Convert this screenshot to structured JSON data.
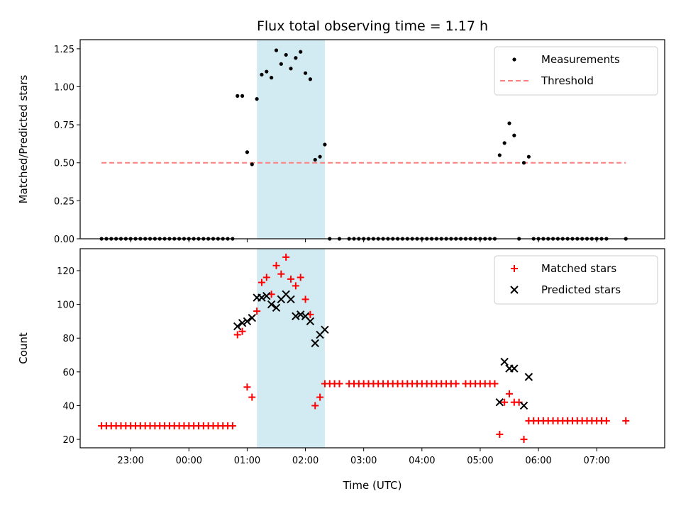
{
  "title": "Flux total observing time = 1.17 h",
  "colors": {
    "measurement": "#000000",
    "threshold": "#ff7f7f",
    "matched": "#ff0000",
    "predicted": "#000000",
    "shade": "#add8e6"
  },
  "chart_data": [
    {
      "type": "scatter",
      "ylabel": "Matched/Predicted stars",
      "xlabel": "",
      "xlim": [
        "22:08",
        "08:10"
      ],
      "ylim": [
        0,
        1.31
      ],
      "yticks": [
        "0.00",
        "0.25",
        "0.50",
        "0.75",
        "1.00",
        "1.25"
      ],
      "shaded_interval": [
        "01:10",
        "02:20"
      ],
      "legend": {
        "position": "top-right",
        "entries": [
          "Measurements",
          "Threshold"
        ]
      },
      "threshold": {
        "name": "Threshold",
        "value": 0.5,
        "x": [
          "22:30",
          "07:30"
        ]
      },
      "series": [
        {
          "name": "Measurements",
          "points": [
            [
              "22:30",
              0
            ],
            [
              "22:35",
              0
            ],
            [
              "22:40",
              0
            ],
            [
              "22:45",
              0
            ],
            [
              "22:50",
              0
            ],
            [
              "22:55",
              0
            ],
            [
              "23:00",
              0
            ],
            [
              "23:05",
              0
            ],
            [
              "23:10",
              0
            ],
            [
              "23:15",
              0
            ],
            [
              "23:20",
              0
            ],
            [
              "23:25",
              0
            ],
            [
              "23:30",
              0
            ],
            [
              "23:35",
              0
            ],
            [
              "23:40",
              0
            ],
            [
              "23:45",
              0
            ],
            [
              "23:50",
              0
            ],
            [
              "23:55",
              0
            ],
            [
              "00:00",
              0
            ],
            [
              "00:05",
              0
            ],
            [
              "00:10",
              0
            ],
            [
              "00:15",
              0
            ],
            [
              "00:20",
              0
            ],
            [
              "00:25",
              0
            ],
            [
              "00:30",
              0
            ],
            [
              "00:35",
              0
            ],
            [
              "00:40",
              0
            ],
            [
              "00:45",
              0
            ],
            [
              "00:50",
              0.94
            ],
            [
              "00:55",
              0.94
            ],
            [
              "01:00",
              0.57
            ],
            [
              "01:05",
              0.49
            ],
            [
              "01:10",
              0.92
            ],
            [
              "01:15",
              1.08
            ],
            [
              "01:20",
              1.1
            ],
            [
              "01:25",
              1.06
            ],
            [
              "01:30",
              1.24
            ],
            [
              "01:35",
              1.15
            ],
            [
              "01:40",
              1.21
            ],
            [
              "01:45",
              1.12
            ],
            [
              "01:50",
              1.19
            ],
            [
              "01:55",
              1.23
            ],
            [
              "02:00",
              1.09
            ],
            [
              "02:05",
              1.05
            ],
            [
              "02:10",
              0.52
            ],
            [
              "02:15",
              0.54
            ],
            [
              "02:20",
              0.62
            ],
            [
              "02:25",
              0
            ],
            [
              "02:35",
              0
            ],
            [
              "02:45",
              0
            ],
            [
              "02:50",
              0
            ],
            [
              "02:55",
              0
            ],
            [
              "03:00",
              0
            ],
            [
              "03:05",
              0
            ],
            [
              "03:10",
              0
            ],
            [
              "03:15",
              0
            ],
            [
              "03:20",
              0
            ],
            [
              "03:25",
              0
            ],
            [
              "03:30",
              0
            ],
            [
              "03:35",
              0
            ],
            [
              "03:40",
              0
            ],
            [
              "03:45",
              0
            ],
            [
              "03:50",
              0
            ],
            [
              "03:55",
              0
            ],
            [
              "04:00",
              0
            ],
            [
              "04:05",
              0
            ],
            [
              "04:10",
              0
            ],
            [
              "04:15",
              0
            ],
            [
              "04:20",
              0
            ],
            [
              "04:25",
              0
            ],
            [
              "04:30",
              0
            ],
            [
              "04:35",
              0
            ],
            [
              "04:40",
              0
            ],
            [
              "04:45",
              0
            ],
            [
              "04:50",
              0
            ],
            [
              "04:55",
              0
            ],
            [
              "05:00",
              0
            ],
            [
              "05:05",
              0
            ],
            [
              "05:10",
              0
            ],
            [
              "05:15",
              0
            ],
            [
              "05:20",
              0.55
            ],
            [
              "05:25",
              0.63
            ],
            [
              "05:30",
              0.76
            ],
            [
              "05:35",
              0.68
            ],
            [
              "05:45",
              0.5
            ],
            [
              "05:50",
              0.54
            ],
            [
              "05:40",
              0
            ],
            [
              "05:55",
              0
            ],
            [
              "06:00",
              0
            ],
            [
              "06:05",
              0
            ],
            [
              "06:10",
              0
            ],
            [
              "06:15",
              0
            ],
            [
              "06:20",
              0
            ],
            [
              "06:25",
              0
            ],
            [
              "06:30",
              0
            ],
            [
              "06:35",
              0
            ],
            [
              "06:40",
              0
            ],
            [
              "06:45",
              0
            ],
            [
              "06:50",
              0
            ],
            [
              "06:55",
              0
            ],
            [
              "07:00",
              0
            ],
            [
              "07:05",
              0
            ],
            [
              "07:10",
              0
            ],
            [
              "07:30",
              0
            ]
          ]
        }
      ]
    },
    {
      "type": "scatter",
      "ylabel": "Count",
      "xlabel": "Time (UTC)",
      "xlim": [
        "22:08",
        "08:10"
      ],
      "ylim": [
        15,
        133
      ],
      "yticks": [
        "20",
        "40",
        "60",
        "80",
        "100",
        "120"
      ],
      "xticks": [
        "23:00",
        "00:00",
        "01:00",
        "02:00",
        "03:00",
        "04:00",
        "05:00",
        "06:00",
        "07:00"
      ],
      "shaded_interval": [
        "01:10",
        "02:20"
      ],
      "legend": {
        "position": "top-right",
        "entries": [
          "Matched stars",
          "Predicted stars"
        ]
      },
      "series": [
        {
          "name": "Matched stars",
          "points": [
            [
              "22:30",
              28
            ],
            [
              "22:35",
              28
            ],
            [
              "22:40",
              28
            ],
            [
              "22:45",
              28
            ],
            [
              "22:50",
              28
            ],
            [
              "22:55",
              28
            ],
            [
              "23:00",
              28
            ],
            [
              "23:05",
              28
            ],
            [
              "23:10",
              28
            ],
            [
              "23:15",
              28
            ],
            [
              "23:20",
              28
            ],
            [
              "23:25",
              28
            ],
            [
              "23:30",
              28
            ],
            [
              "23:35",
              28
            ],
            [
              "23:40",
              28
            ],
            [
              "23:45",
              28
            ],
            [
              "23:50",
              28
            ],
            [
              "23:55",
              28
            ],
            [
              "00:00",
              28
            ],
            [
              "00:05",
              28
            ],
            [
              "00:10",
              28
            ],
            [
              "00:15",
              28
            ],
            [
              "00:20",
              28
            ],
            [
              "00:25",
              28
            ],
            [
              "00:30",
              28
            ],
            [
              "00:35",
              28
            ],
            [
              "00:40",
              28
            ],
            [
              "00:45",
              28
            ],
            [
              "00:50",
              82
            ],
            [
              "00:55",
              84
            ],
            [
              "01:00",
              51
            ],
            [
              "01:05",
              45
            ],
            [
              "01:10",
              96
            ],
            [
              "01:15",
              113
            ],
            [
              "01:20",
              116
            ],
            [
              "01:25",
              106
            ],
            [
              "01:30",
              123
            ],
            [
              "01:35",
              118
            ],
            [
              "01:40",
              128
            ],
            [
              "01:45",
              115
            ],
            [
              "01:50",
              111
            ],
            [
              "01:55",
              116
            ],
            [
              "02:00",
              103
            ],
            [
              "02:05",
              94
            ],
            [
              "02:10",
              40
            ],
            [
              "02:15",
              45
            ],
            [
              "02:20",
              53
            ],
            [
              "02:25",
              53
            ],
            [
              "02:30",
              53
            ],
            [
              "02:35",
              53
            ],
            [
              "02:45",
              53
            ],
            [
              "02:50",
              53
            ],
            [
              "02:55",
              53
            ],
            [
              "03:00",
              53
            ],
            [
              "03:05",
              53
            ],
            [
              "03:10",
              53
            ],
            [
              "03:15",
              53
            ],
            [
              "03:20",
              53
            ],
            [
              "03:25",
              53
            ],
            [
              "03:30",
              53
            ],
            [
              "03:35",
              53
            ],
            [
              "03:40",
              53
            ],
            [
              "03:45",
              53
            ],
            [
              "03:50",
              53
            ],
            [
              "03:55",
              53
            ],
            [
              "04:00",
              53
            ],
            [
              "04:05",
              53
            ],
            [
              "04:10",
              53
            ],
            [
              "04:15",
              53
            ],
            [
              "04:20",
              53
            ],
            [
              "04:25",
              53
            ],
            [
              "04:30",
              53
            ],
            [
              "04:35",
              53
            ],
            [
              "04:45",
              53
            ],
            [
              "04:50",
              53
            ],
            [
              "04:55",
              53
            ],
            [
              "05:00",
              53
            ],
            [
              "05:05",
              53
            ],
            [
              "05:10",
              53
            ],
            [
              "05:15",
              53
            ],
            [
              "05:20",
              23
            ],
            [
              "05:25",
              42
            ],
            [
              "05:30",
              47
            ],
            [
              "05:35",
              42
            ],
            [
              "05:40",
              42
            ],
            [
              "05:45",
              20
            ],
            [
              "05:50",
              31
            ],
            [
              "05:55",
              31
            ],
            [
              "06:00",
              31
            ],
            [
              "06:05",
              31
            ],
            [
              "06:10",
              31
            ],
            [
              "06:15",
              31
            ],
            [
              "06:20",
              31
            ],
            [
              "06:25",
              31
            ],
            [
              "06:30",
              31
            ],
            [
              "06:35",
              31
            ],
            [
              "06:40",
              31
            ],
            [
              "06:45",
              31
            ],
            [
              "06:50",
              31
            ],
            [
              "06:55",
              31
            ],
            [
              "07:00",
              31
            ],
            [
              "07:05",
              31
            ],
            [
              "07:10",
              31
            ],
            [
              "07:30",
              31
            ]
          ]
        },
        {
          "name": "Predicted stars",
          "points": [
            [
              "00:50",
              87
            ],
            [
              "00:55",
              89
            ],
            [
              "01:00",
              90
            ],
            [
              "01:05",
              92
            ],
            [
              "01:10",
              104
            ],
            [
              "01:15",
              104
            ],
            [
              "01:20",
              105
            ],
            [
              "01:25",
              100
            ],
            [
              "01:30",
              98
            ],
            [
              "01:35",
              103
            ],
            [
              "01:40",
              106
            ],
            [
              "01:45",
              103
            ],
            [
              "01:50",
              93
            ],
            [
              "01:55",
              94
            ],
            [
              "02:00",
              93
            ],
            [
              "02:05",
              90
            ],
            [
              "02:10",
              77
            ],
            [
              "02:15",
              82
            ],
            [
              "02:20",
              85
            ],
            [
              "05:20",
              42
            ],
            [
              "05:25",
              66
            ],
            [
              "05:30",
              62
            ],
            [
              "05:35",
              62
            ],
            [
              "05:45",
              40
            ],
            [
              "05:50",
              57
            ]
          ]
        }
      ]
    }
  ]
}
